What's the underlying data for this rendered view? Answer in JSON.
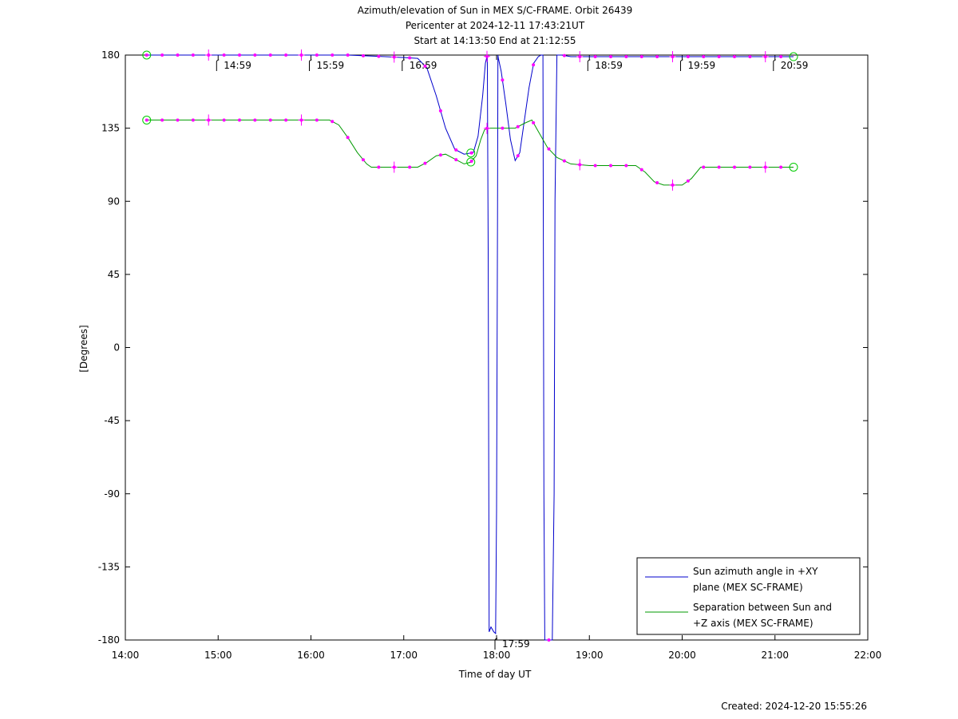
{
  "chart_data": {
    "type": "line",
    "title": [
      "Azimuth/elevation of Sun in MEX S/C-FRAME.  Orbit 26439",
      "Pericenter at 2024-12-11 17:43:21UT",
      "Start at 14:13:50 End at 21:12:55"
    ],
    "xlabel": "Time of day UT",
    "ylabel": "[Degrees]",
    "xlim": [
      14.0,
      22.0
    ],
    "ylim": [
      -180,
      180
    ],
    "x_ticks": [
      14,
      15,
      16,
      17,
      18,
      19,
      20,
      21,
      22
    ],
    "x_tick_labels": [
      "14:00",
      "15:00",
      "16:00",
      "17:00",
      "18:00",
      "19:00",
      "20:00",
      "21:00",
      "22:00"
    ],
    "y_ticks": [
      -180,
      -135,
      -90,
      -45,
      0,
      45,
      90,
      135,
      180
    ],
    "y_tick_labels": [
      "-180",
      "-135",
      "-90",
      "-45",
      "0",
      "45",
      "90",
      "135",
      "180"
    ],
    "grid": false,
    "legend_position": "bottom-right",
    "footer": "Created: 2024-12-20 15:55:26",
    "time_markers": [
      {
        "label": "14:59",
        "x": 14.983,
        "y": 180
      },
      {
        "label": "15:59",
        "x": 15.983,
        "y": 180
      },
      {
        "label": "16:59",
        "x": 16.983,
        "y": 180
      },
      {
        "label": "17:59",
        "x": 17.983,
        "y": -180
      },
      {
        "label": "18:59",
        "x": 18.983,
        "y": 180
      },
      {
        "label": "19:59",
        "x": 19.983,
        "y": 180
      },
      {
        "label": "20:59",
        "x": 20.983,
        "y": 180
      }
    ],
    "series": [
      {
        "name": "Sun azimuth angle in +XY plane (MEX SC-FRAME)",
        "legend_lines": [
          "Sun azimuth angle in +XY",
          "plane (MEX SC-FRAME)"
        ],
        "color": "#0000cc",
        "x": [
          14.23,
          14.5,
          15.0,
          15.5,
          16.0,
          16.4,
          16.8,
          17.0,
          17.15,
          17.25,
          17.35,
          17.45,
          17.55,
          17.65,
          17.75,
          17.8,
          17.85,
          17.88,
          17.9,
          17.91,
          17.92,
          17.94,
          17.97,
          17.99,
          18.0,
          18.01,
          18.015,
          18.02,
          18.05,
          18.1,
          18.15,
          18.2,
          18.25,
          18.3,
          18.35,
          18.4,
          18.45,
          18.48,
          18.5,
          18.51,
          18.52,
          18.53,
          18.6,
          18.62,
          18.63,
          18.65,
          18.7,
          18.8,
          19.0,
          19.5,
          20.0,
          20.5,
          21.0,
          21.2
        ],
        "y": [
          180,
          180,
          180,
          180,
          180,
          180,
          179,
          178.5,
          178,
          172,
          155,
          135,
          122,
          119,
          120,
          130,
          155,
          175,
          180,
          60,
          -175,
          -172,
          -175,
          -176,
          -100,
          80,
          180,
          178,
          170,
          150,
          128,
          115,
          120,
          140,
          160,
          175,
          179,
          180,
          180,
          -90,
          -180,
          -180,
          -180,
          -90,
          90,
          180,
          180,
          179,
          179,
          179,
          179,
          179,
          179,
          179
        ]
      },
      {
        "name": "Separation between Sun and +Z axis (MEX SC-FRAME)",
        "legend_lines": [
          "Separation between Sun and",
          "+Z axis (MEX SC-FRAME)"
        ],
        "color": "#009900",
        "x": [
          14.23,
          14.5,
          15.0,
          15.5,
          16.0,
          16.2,
          16.3,
          16.4,
          16.5,
          16.6,
          16.65,
          16.8,
          17.0,
          17.15,
          17.25,
          17.35,
          17.45,
          17.55,
          17.65,
          17.72,
          17.78,
          17.83,
          17.87,
          17.9,
          17.95,
          18.0,
          18.2,
          18.3,
          18.38,
          18.45,
          18.55,
          18.65,
          18.8,
          19.0,
          19.25,
          19.5,
          19.6,
          19.7,
          19.8,
          20.0,
          20.1,
          20.2,
          20.5,
          21.0,
          21.2
        ],
        "y": [
          140,
          140,
          140,
          140,
          140,
          140,
          137,
          129,
          120,
          113,
          111,
          111,
          111,
          111,
          114,
          118,
          119,
          116,
          113,
          114,
          118,
          128,
          134,
          135,
          135,
          135,
          135,
          138,
          140,
          133,
          123,
          117,
          113,
          112,
          112,
          112,
          108,
          102,
          100,
          100,
          104,
          111,
          111,
          111,
          111
        ]
      }
    ],
    "markers_color": "#ff00ff",
    "endpoint_circle_color": "#00cc00"
  }
}
